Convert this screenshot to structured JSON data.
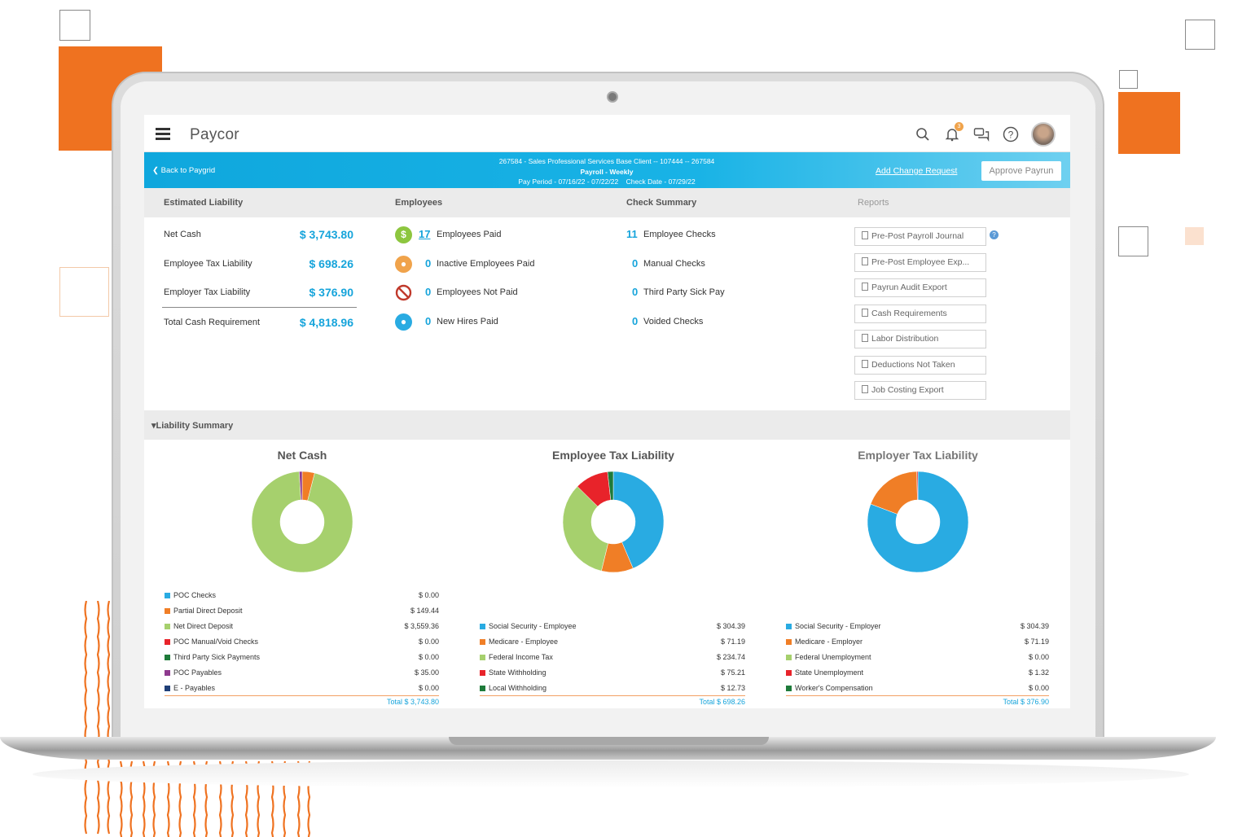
{
  "app": {
    "logo": "Paycor",
    "notification_count": "3"
  },
  "bluebar": {
    "back_label": "Back to Paygrid",
    "client_line": "267584 - Sales Professional Services Base Client -- 107444 -- 267584",
    "payroll_line": "Payroll - Weekly",
    "period_line": "Pay Period - 07/16/22 - 07/22/22    Check Date - 07/29/22",
    "add_change_request": "Add Change Request",
    "approve_payrun": "Approve Payrun"
  },
  "sections": {
    "estimated_liability": "Estimated Liability",
    "employees": "Employees",
    "check_summary": "Check Summary",
    "reports": "Reports",
    "liability_summary": "Liability Summary"
  },
  "liability": [
    {
      "label": "Net Cash",
      "value": "$ 3,743.80"
    },
    {
      "label": "Employee Tax Liability",
      "value": "$ 698.26"
    },
    {
      "label": "Employer Tax Liability",
      "value": "$ 376.90"
    },
    {
      "label": "Total Cash Requirement",
      "value": "$ 4,818.96"
    }
  ],
  "employees": [
    {
      "count": "17",
      "label": "Employees Paid",
      "icon": "dollar-icon",
      "color": "#8dc63f"
    },
    {
      "count": "0",
      "label": "Inactive Employees Paid",
      "icon": "inactive-user-icon",
      "color": "#f0a34b"
    },
    {
      "count": "0",
      "label": "Employees Not Paid",
      "icon": "prohibited-icon",
      "color": "#c0392b"
    },
    {
      "count": "0",
      "label": "New Hires Paid",
      "icon": "new-hire-icon",
      "color": "#29abe2"
    }
  ],
  "checks": [
    {
      "count": "11",
      "label": "Employee Checks"
    },
    {
      "count": "0",
      "label": "Manual Checks"
    },
    {
      "count": "0",
      "label": "Third Party Sick Pay"
    },
    {
      "count": "0",
      "label": "Voided Checks"
    }
  ],
  "reports": [
    "Pre-Post Payroll Journal",
    "Pre-Post Employee Exp...",
    "Payrun Audit Export",
    "Cash Requirements",
    "Labor Distribution",
    "Deductions Not Taken",
    "Job Costing Export"
  ],
  "chart_data": [
    {
      "type": "pie",
      "title": "Net Cash",
      "categories": [
        "POC Checks",
        "Partial Direct Deposit",
        "Net Direct Deposit",
        "POC Manual/Void Checks",
        "Third Party Sick Payments",
        "POC Payables",
        "E - Payables"
      ],
      "values": [
        0.0,
        149.44,
        3559.36,
        0.0,
        0.0,
        35.0,
        0.0
      ],
      "labels": [
        "$ 0.00",
        "$ 149.44",
        "$ 3,559.36",
        "$ 0.00",
        "$ 0.00",
        "$ 35.00",
        "$ 0.00"
      ],
      "colors": [
        "#29abe2",
        "#f07e26",
        "#a6d06d",
        "#e8232a",
        "#1e7b3a",
        "#8e3a8e",
        "#1f3f77"
      ],
      "total": "Total $ 3,743.80"
    },
    {
      "type": "pie",
      "title": "Employee Tax Liability",
      "categories": [
        "Social Security - Employee",
        "Medicare - Employee",
        "Federal Income Tax",
        "State Withholding",
        "Local Withholding"
      ],
      "values": [
        304.39,
        71.19,
        234.74,
        75.21,
        12.73
      ],
      "labels": [
        "$ 304.39",
        "$ 71.19",
        "$ 234.74",
        "$ 75.21",
        "$ 12.73"
      ],
      "colors": [
        "#29abe2",
        "#f07e26",
        "#a6d06d",
        "#e8232a",
        "#1e7b3a"
      ],
      "total": "Total $ 698.26"
    },
    {
      "type": "pie",
      "title": "Employer Tax Liability",
      "categories": [
        "Social Security - Employer",
        "Medicare - Employer",
        "Federal Unemployment",
        "State Unemployment",
        "Worker's Compensation"
      ],
      "values": [
        304.39,
        71.19,
        0.0,
        1.32,
        0.0
      ],
      "labels": [
        "$ 304.39",
        "$ 71.19",
        "$ 0.00",
        "$ 1.32",
        "$ 0.00"
      ],
      "colors": [
        "#29abe2",
        "#f07e26",
        "#a6d06d",
        "#e8232a",
        "#1e7b3a"
      ],
      "total": "Total $ 376.90"
    }
  ]
}
